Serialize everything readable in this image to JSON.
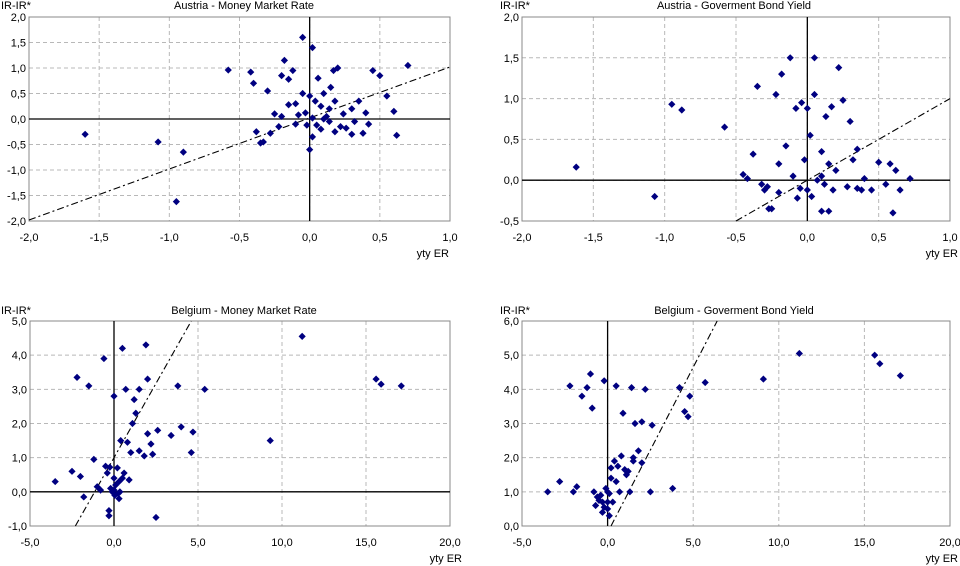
{
  "chart_data": [
    {
      "type": "scatter",
      "title": "Austria - Money Market Rate",
      "ylabel": "IR-IR*",
      "xlabel": "yty ER",
      "xlim": [
        -2.0,
        1.0
      ],
      "ylim": [
        -2.0,
        2.0
      ],
      "xticks": [
        "-2,0",
        "-1,5",
        "-1,0",
        "-0,5",
        "0,0",
        "0,5",
        "1,0"
      ],
      "yticks": [
        "-2,0",
        "-1,5",
        "-1,0",
        "-0,5",
        "0,0",
        "0,5",
        "1,0",
        "1,5",
        "2,0"
      ],
      "fit_line": [
        [
          -2.0,
          -1.98
        ],
        [
          1.0,
          1.02
        ]
      ],
      "points": [
        [
          -1.6,
          -0.3
        ],
        [
          -1.08,
          -0.45
        ],
        [
          -0.95,
          -1.62
        ],
        [
          -0.9,
          -0.65
        ],
        [
          -0.58,
          0.96
        ],
        [
          -0.42,
          0.92
        ],
        [
          -0.4,
          0.7
        ],
        [
          -0.38,
          -0.25
        ],
        [
          -0.35,
          -0.47
        ],
        [
          -0.33,
          -0.45
        ],
        [
          -0.3,
          0.55
        ],
        [
          -0.28,
          -0.28
        ],
        [
          -0.25,
          0.1
        ],
        [
          -0.22,
          -0.15
        ],
        [
          -0.2,
          0.85
        ],
        [
          -0.2,
          0.05
        ],
        [
          -0.18,
          1.15
        ],
        [
          -0.15,
          0.28
        ],
        [
          -0.15,
          0.78
        ],
        [
          -0.12,
          0.95
        ],
        [
          -0.1,
          -0.1
        ],
        [
          -0.1,
          0.3
        ],
        [
          -0.08,
          0.08
        ],
        [
          -0.05,
          1.6
        ],
        [
          -0.05,
          0.5
        ],
        [
          -0.03,
          0.12
        ],
        [
          -0.02,
          -0.12
        ],
        [
          0.0,
          0.45
        ],
        [
          0.0,
          -0.6
        ],
        [
          0.02,
          -0.35
        ],
        [
          0.02,
          0.02
        ],
        [
          0.04,
          0.35
        ],
        [
          0.05,
          -0.12
        ],
        [
          0.06,
          0.8
        ],
        [
          0.08,
          0.25
        ],
        [
          0.08,
          -0.2
        ],
        [
          0.1,
          0.0
        ],
        [
          0.12,
          0.05
        ],
        [
          0.14,
          -0.05
        ],
        [
          0.15,
          0.62
        ],
        [
          0.17,
          0.95
        ],
        [
          0.18,
          -0.25
        ],
        [
          0.2,
          1.0
        ],
        [
          0.22,
          -0.15
        ],
        [
          0.24,
          0.1
        ],
        [
          0.26,
          -0.18
        ],
        [
          0.3,
          0.2
        ],
        [
          0.32,
          -0.05
        ],
        [
          0.35,
          0.35
        ],
        [
          0.38,
          -0.28
        ],
        [
          0.4,
          0.12
        ],
        [
          0.42,
          -0.1
        ],
        [
          0.45,
          0.95
        ],
        [
          0.5,
          0.85
        ],
        [
          0.55,
          0.45
        ],
        [
          0.6,
          0.15
        ],
        [
          0.62,
          -0.32
        ],
        [
          0.7,
          1.05
        ],
        [
          0.02,
          1.4
        ],
        [
          0.1,
          0.5
        ],
        [
          0.3,
          -0.3
        ],
        [
          0.18,
          0.35
        ],
        [
          0.14,
          0.2
        ]
      ]
    },
    {
      "type": "scatter",
      "title": "Austria - Goverment Bond Yield",
      "ylabel": "IR-IR*",
      "xlabel": "yty ER",
      "xlim": [
        -2.0,
        1.0
      ],
      "ylim": [
        -0.5,
        2.0
      ],
      "xticks": [
        "-2,0",
        "-1,5",
        "-1,0",
        "-0,5",
        "0,0",
        "0,5",
        "1,0"
      ],
      "yticks": [
        "-0,5",
        "0,0",
        "0,5",
        "1,0",
        "1,5",
        "2,0"
      ],
      "fit_line": [
        [
          -0.5,
          -0.5
        ],
        [
          1.0,
          1.0
        ]
      ],
      "points": [
        [
          -1.62,
          0.16
        ],
        [
          -1.07,
          -0.2
        ],
        [
          -0.95,
          0.93
        ],
        [
          -0.88,
          0.86
        ],
        [
          -0.58,
          0.65
        ],
        [
          -0.45,
          0.07
        ],
        [
          -0.42,
          0.02
        ],
        [
          -0.38,
          0.32
        ],
        [
          -0.35,
          1.15
        ],
        [
          -0.32,
          -0.05
        ],
        [
          -0.3,
          -0.12
        ],
        [
          -0.28,
          -0.08
        ],
        [
          -0.25,
          -0.35
        ],
        [
          -0.22,
          1.05
        ],
        [
          -0.2,
          0.2
        ],
        [
          -0.2,
          -0.15
        ],
        [
          -0.18,
          1.3
        ],
        [
          -0.15,
          0.42
        ],
        [
          -0.12,
          1.5
        ],
        [
          -0.1,
          0.05
        ],
        [
          -0.08,
          0.88
        ],
        [
          -0.07,
          -0.22
        ],
        [
          -0.05,
          -0.1
        ],
        [
          -0.04,
          0.95
        ],
        [
          -0.02,
          0.25
        ],
        [
          0.0,
          -0.12
        ],
        [
          0.0,
          0.88
        ],
        [
          0.02,
          0.55
        ],
        [
          0.03,
          -0.2
        ],
        [
          0.05,
          1.5
        ],
        [
          0.05,
          1.05
        ],
        [
          0.07,
          0.0
        ],
        [
          0.1,
          0.35
        ],
        [
          0.1,
          0.05
        ],
        [
          0.12,
          -0.05
        ],
        [
          0.13,
          0.78
        ],
        [
          0.15,
          0.2
        ],
        [
          0.17,
          0.9
        ],
        [
          0.18,
          -0.12
        ],
        [
          0.2,
          0.12
        ],
        [
          0.22,
          1.38
        ],
        [
          0.25,
          0.98
        ],
        [
          0.28,
          -0.08
        ],
        [
          0.3,
          0.72
        ],
        [
          0.32,
          0.25
        ],
        [
          0.35,
          0.38
        ],
        [
          0.38,
          -0.12
        ],
        [
          0.4,
          0.02
        ],
        [
          0.45,
          -0.12
        ],
        [
          0.5,
          0.22
        ],
        [
          0.55,
          -0.05
        ],
        [
          0.58,
          0.2
        ],
        [
          0.6,
          -0.4
        ],
        [
          0.62,
          0.12
        ],
        [
          0.65,
          -0.12
        ],
        [
          0.72,
          0.02
        ],
        [
          -0.27,
          -0.35
        ],
        [
          0.15,
          -0.38
        ],
        [
          0.1,
          -0.38
        ],
        [
          0.35,
          -0.1
        ]
      ]
    },
    {
      "type": "scatter",
      "title": "Belgium - Money Market Rate",
      "ylabel": "IR-IR*",
      "xlabel": "yty ER",
      "xlim": [
        -5.0,
        20.0
      ],
      "ylim": [
        -1.0,
        5.0
      ],
      "xticks": [
        "-5,0",
        "0,0",
        "5,0",
        "10,0",
        "15,0",
        "20,0"
      ],
      "yticks": [
        "-1,0",
        "0,0",
        "1,0",
        "2,0",
        "3,0",
        "4,0",
        "5,0"
      ],
      "fit_line": [
        [
          -2.3,
          -1.0
        ],
        [
          4.6,
          5.0
        ]
      ],
      "points": [
        [
          -3.5,
          0.3
        ],
        [
          -2.5,
          0.6
        ],
        [
          -2.2,
          3.35
        ],
        [
          -2.0,
          0.45
        ],
        [
          -1.8,
          -0.15
        ],
        [
          -1.5,
          3.1
        ],
        [
          -1.2,
          0.95
        ],
        [
          -1.0,
          0.15
        ],
        [
          -0.8,
          0.05
        ],
        [
          -0.6,
          3.9
        ],
        [
          -0.5,
          0.75
        ],
        [
          -0.4,
          0.55
        ],
        [
          -0.3,
          -0.55
        ],
        [
          -0.3,
          -0.7
        ],
        [
          -0.25,
          0.72
        ],
        [
          -0.2,
          0.1
        ],
        [
          -0.1,
          0.0
        ],
        [
          0.0,
          0.05
        ],
        [
          0.0,
          0.4
        ],
        [
          0.0,
          2.8
        ],
        [
          0.05,
          -0.1
        ],
        [
          0.1,
          0.2
        ],
        [
          0.2,
          0.7
        ],
        [
          0.25,
          -0.05
        ],
        [
          0.3,
          0.3
        ],
        [
          0.35,
          0.0
        ],
        [
          0.4,
          1.5
        ],
        [
          0.5,
          4.2
        ],
        [
          0.5,
          0.4
        ],
        [
          0.6,
          0.55
        ],
        [
          0.7,
          3.0
        ],
        [
          0.8,
          1.45
        ],
        [
          0.9,
          0.35
        ],
        [
          1.0,
          1.15
        ],
        [
          1.2,
          2.7
        ],
        [
          1.3,
          2.3
        ],
        [
          1.5,
          1.2
        ],
        [
          1.5,
          3.0
        ],
        [
          1.8,
          1.05
        ],
        [
          1.9,
          4.3
        ],
        [
          2.0,
          3.3
        ],
        [
          2.0,
          1.7
        ],
        [
          2.3,
          1.1
        ],
        [
          2.5,
          -0.75
        ],
        [
          2.6,
          1.8
        ],
        [
          3.4,
          1.65
        ],
        [
          3.8,
          3.1
        ],
        [
          4.0,
          1.9
        ],
        [
          4.6,
          1.15
        ],
        [
          4.7,
          1.75
        ],
        [
          5.4,
          3.0
        ],
        [
          9.3,
          1.5
        ],
        [
          11.2,
          4.55
        ],
        [
          15.6,
          3.3
        ],
        [
          15.9,
          3.15
        ],
        [
          17.1,
          3.1
        ],
        [
          2.2,
          1.4
        ],
        [
          1.1,
          2.0
        ],
        [
          0.3,
          -0.2
        ]
      ]
    },
    {
      "type": "scatter",
      "title": "Belgium - Goverment Bond Yield",
      "ylabel": "IR-IR*",
      "xlabel": "yty ER",
      "xlim": [
        -5.0,
        20.0
      ],
      "ylim": [
        0.0,
        6.0
      ],
      "xticks": [
        "-5,0",
        "0,0",
        "5,0",
        "10,0",
        "15,0",
        "20,0"
      ],
      "yticks": [
        "0,0",
        "1,0",
        "2,0",
        "3,0",
        "4,0",
        "5,0",
        "6,0"
      ],
      "fit_line": [
        [
          0.2,
          0.0
        ],
        [
          6.4,
          6.0
        ]
      ],
      "points": [
        [
          -3.5,
          1.0
        ],
        [
          -2.8,
          1.3
        ],
        [
          -2.2,
          4.1
        ],
        [
          -2.0,
          1.0
        ],
        [
          -1.8,
          1.15
        ],
        [
          -1.5,
          3.8
        ],
        [
          -1.2,
          4.05
        ],
        [
          -1.0,
          4.45
        ],
        [
          -0.9,
          3.45
        ],
        [
          -0.8,
          1.0
        ],
        [
          -0.7,
          0.6
        ],
        [
          -0.6,
          0.85
        ],
        [
          -0.5,
          0.75
        ],
        [
          -0.4,
          0.9
        ],
        [
          -0.3,
          0.7
        ],
        [
          -0.3,
          0.4
        ],
        [
          -0.2,
          0.55
        ],
        [
          -0.2,
          4.25
        ],
        [
          -0.1,
          1.1
        ],
        [
          0.0,
          0.5
        ],
        [
          0.0,
          0.7
        ],
        [
          0.0,
          1.0
        ],
        [
          0.1,
          0.3
        ],
        [
          0.2,
          1.4
        ],
        [
          0.2,
          1.7
        ],
        [
          0.3,
          0.7
        ],
        [
          0.4,
          1.9
        ],
        [
          0.5,
          1.3
        ],
        [
          0.5,
          4.1
        ],
        [
          0.6,
          1.75
        ],
        [
          0.7,
          1.0
        ],
        [
          0.8,
          2.05
        ],
        [
          0.9,
          3.3
        ],
        [
          1.0,
          1.65
        ],
        [
          1.1,
          1.5
        ],
        [
          1.2,
          1.6
        ],
        [
          1.3,
          1.0
        ],
        [
          1.4,
          4.05
        ],
        [
          1.5,
          2.0
        ],
        [
          1.6,
          3.0
        ],
        [
          1.8,
          2.2
        ],
        [
          2.0,
          3.05
        ],
        [
          2.0,
          1.85
        ],
        [
          2.2,
          4.0
        ],
        [
          2.5,
          1.0
        ],
        [
          2.6,
          2.95
        ],
        [
          3.8,
          1.1
        ],
        [
          4.2,
          4.05
        ],
        [
          4.5,
          3.35
        ],
        [
          4.7,
          3.2
        ],
        [
          4.8,
          3.8
        ],
        [
          5.7,
          4.2
        ],
        [
          9.1,
          4.3
        ],
        [
          11.2,
          5.05
        ],
        [
          15.6,
          5.0
        ],
        [
          15.9,
          4.75
        ],
        [
          17.1,
          4.4
        ],
        [
          1.5,
          1.9
        ],
        [
          0.1,
          0.95
        ]
      ]
    }
  ]
}
